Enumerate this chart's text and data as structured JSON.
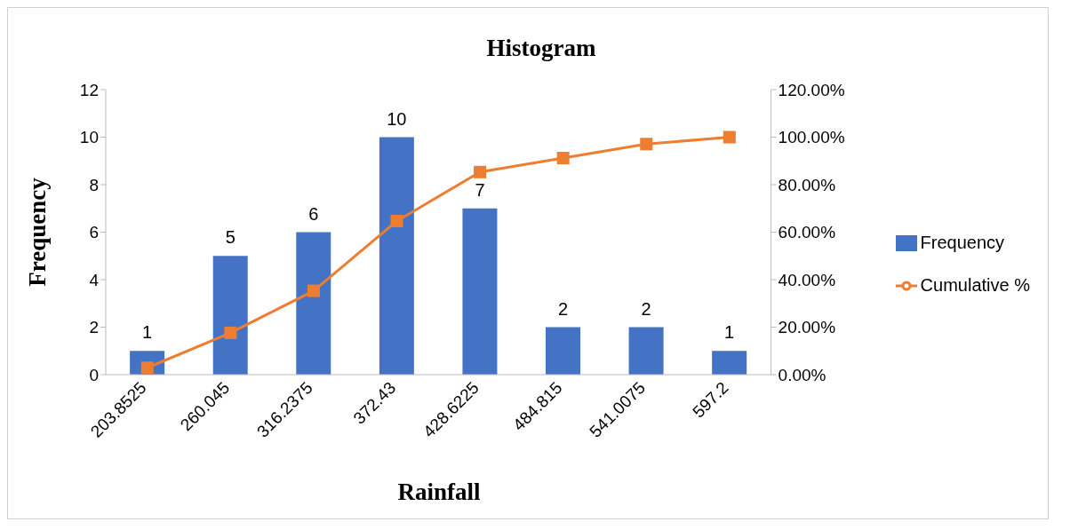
{
  "chart_data": {
    "type": "bar",
    "title": "Histogram",
    "xlabel": "Rainfall",
    "ylabel": "Frequency",
    "categories": [
      "203.8525",
      "260.045",
      "316.2375",
      "372.43",
      "428.6225",
      "484.815",
      "541.0075",
      "597.2"
    ],
    "series": [
      {
        "name": "Frequency",
        "color": "#4472c4",
        "values": [
          1,
          5,
          6,
          10,
          7,
          2,
          2,
          1
        ],
        "value_labels": [
          "1",
          "5",
          "6",
          "10",
          "7",
          "2",
          "2",
          "1"
        ]
      },
      {
        "name": "Cumulative %",
        "type": "line",
        "axis": "y2",
        "color": "#ed7d31",
        "marker": "square",
        "values": [
          2.9,
          17.6,
          35.3,
          64.7,
          85.3,
          91.2,
          97.1,
          100
        ]
      }
    ],
    "ylim": [
      0,
      12
    ],
    "yticks": [
      0,
      2,
      4,
      6,
      8,
      10,
      12
    ],
    "y2lim": [
      0,
      120
    ],
    "y2ticks": [
      {
        "value": 0,
        "label": "0.00%"
      },
      {
        "value": 20,
        "label": "20.00%"
      },
      {
        "value": 40,
        "label": "40.00%"
      },
      {
        "value": 60,
        "label": "60.00%"
      },
      {
        "value": 80,
        "label": "80.00%"
      },
      {
        "value": 100,
        "label": "100.00%"
      },
      {
        "value": 120,
        "label": "120.00%"
      }
    ],
    "grid": false,
    "legend": "right"
  }
}
